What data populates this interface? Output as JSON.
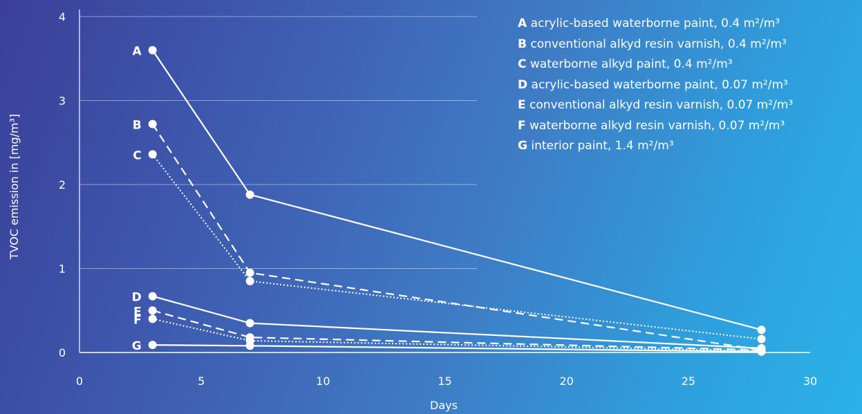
{
  "chart_data": {
    "type": "line",
    "xlabel": "Days",
    "ylabel": "TVOC emission in [mg/m³]",
    "xlim": [
      0,
      30
    ],
    "ylim": [
      0,
      4
    ],
    "xticks": [
      "0",
      "5",
      "10",
      "15",
      "20",
      "25",
      "30"
    ],
    "yticks": [
      "0",
      "1",
      "2",
      "3",
      "4"
    ],
    "grid": "horizontal",
    "legend_position": "top-right",
    "x": [
      3,
      7,
      28
    ],
    "series": [
      {
        "key": "A",
        "desc": "acrylic-based waterborne paint, 0.4 m²/m³",
        "style": "solid",
        "values": [
          3.6,
          1.88,
          0.27
        ]
      },
      {
        "key": "B",
        "desc": "conventional alkyd resin varnish, 0.4 m²/m³",
        "style": "dashed",
        "values": [
          2.72,
          0.95,
          0.03
        ]
      },
      {
        "key": "C",
        "desc": "waterborne alkyd paint, 0.4 m²/m³",
        "style": "dotted",
        "values": [
          2.36,
          0.85,
          0.16
        ]
      },
      {
        "key": "D",
        "desc": "acrylic-based waterborne paint, 0.07 m²/m³",
        "style": "solid",
        "values": [
          0.67,
          0.35,
          0.05
        ]
      },
      {
        "key": "E",
        "desc": "conventional alkyd resin varnish, 0.07 m²/m³",
        "style": "dashed",
        "values": [
          0.5,
          0.18,
          0.03
        ]
      },
      {
        "key": "F",
        "desc": "waterborne alkyd resin varnish, 0.07 m²/m³",
        "style": "dotted",
        "values": [
          0.4,
          0.14,
          0.02
        ]
      },
      {
        "key": "G",
        "desc": "interior paint, 1.4 m²/m³",
        "style": "solid",
        "values": [
          0.09,
          0.08,
          0.01
        ]
      }
    ]
  }
}
